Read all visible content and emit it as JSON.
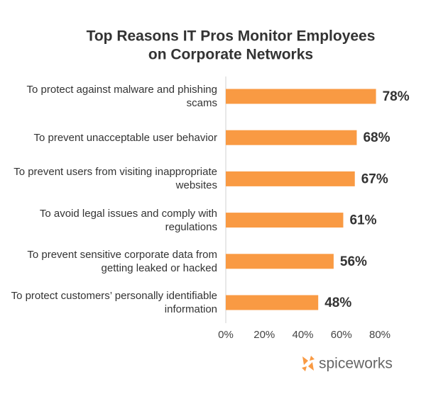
{
  "chart_data": {
    "type": "hbar",
    "title": [
      "Top Reasons IT Pros Monitor Employees",
      "on Corporate Networks"
    ],
    "categories": [
      "To protect against malware and phishing scams",
      "To prevent unacceptable user behavior",
      "To prevent users from visiting inappropriate websites",
      "To avoid legal issues and comply with regulations",
      "To prevent sensitive corporate data from getting leaked or hacked",
      "To protect customers’ personally identifiable information"
    ],
    "values": [
      78,
      68,
      67,
      61,
      56,
      48
    ],
    "value_labels": [
      "78%",
      "68%",
      "67%",
      "61%",
      "56%",
      "48%"
    ],
    "color": "#f99a43",
    "xlim": [
      0,
      80
    ],
    "xticks": [
      {
        "value": 0,
        "label": "0%"
      },
      {
        "value": 20,
        "label": "20%"
      },
      {
        "value": 40,
        "label": "40%"
      },
      {
        "value": 60,
        "label": "60%"
      },
      {
        "value": 80,
        "label": "80%"
      }
    ],
    "grid": false,
    "logo": "spiceworks"
  }
}
